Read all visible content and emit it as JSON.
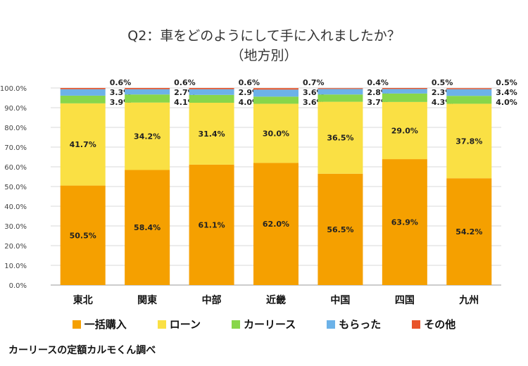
{
  "title_line1": "Q2：車をどのようにして手に入れましたか？",
  "title_line2": "（地方別）",
  "source": "カーリースの定額カルモくん調べ",
  "chart_data": {
    "type": "bar",
    "stacked": true,
    "categories": [
      "東北",
      "関東",
      "中部",
      "近畿",
      "中国",
      "四国",
      "九州"
    ],
    "series": [
      {
        "name": "一括購入",
        "color": "#f5a000",
        "values": [
          50.5,
          58.4,
          61.1,
          62.0,
          56.5,
          63.9,
          54.2
        ]
      },
      {
        "name": "ローン",
        "color": "#fae044",
        "values": [
          41.7,
          34.2,
          31.4,
          30.0,
          36.5,
          29.0,
          37.8
        ]
      },
      {
        "name": "カーリース",
        "color": "#88d64a",
        "values": [
          3.9,
          4.1,
          4.0,
          3.6,
          3.7,
          4.3,
          4.0
        ]
      },
      {
        "name": "もらった",
        "color": "#6cb2e8",
        "values": [
          3.3,
          2.7,
          2.9,
          3.6,
          2.8,
          2.3,
          3.4
        ]
      },
      {
        "name": "その他",
        "color": "#e8542a",
        "values": [
          0.6,
          0.6,
          0.6,
          0.7,
          0.4,
          0.5,
          0.5
        ]
      }
    ],
    "ylim": [
      0,
      100
    ],
    "yticks": [
      "0.0%",
      "10.0%",
      "20.0%",
      "30.0%",
      "40.0%",
      "50.0%",
      "60.0%",
      "70.0%",
      "80.0%",
      "90.0%",
      "100.0%"
    ],
    "legend": "bottom"
  }
}
